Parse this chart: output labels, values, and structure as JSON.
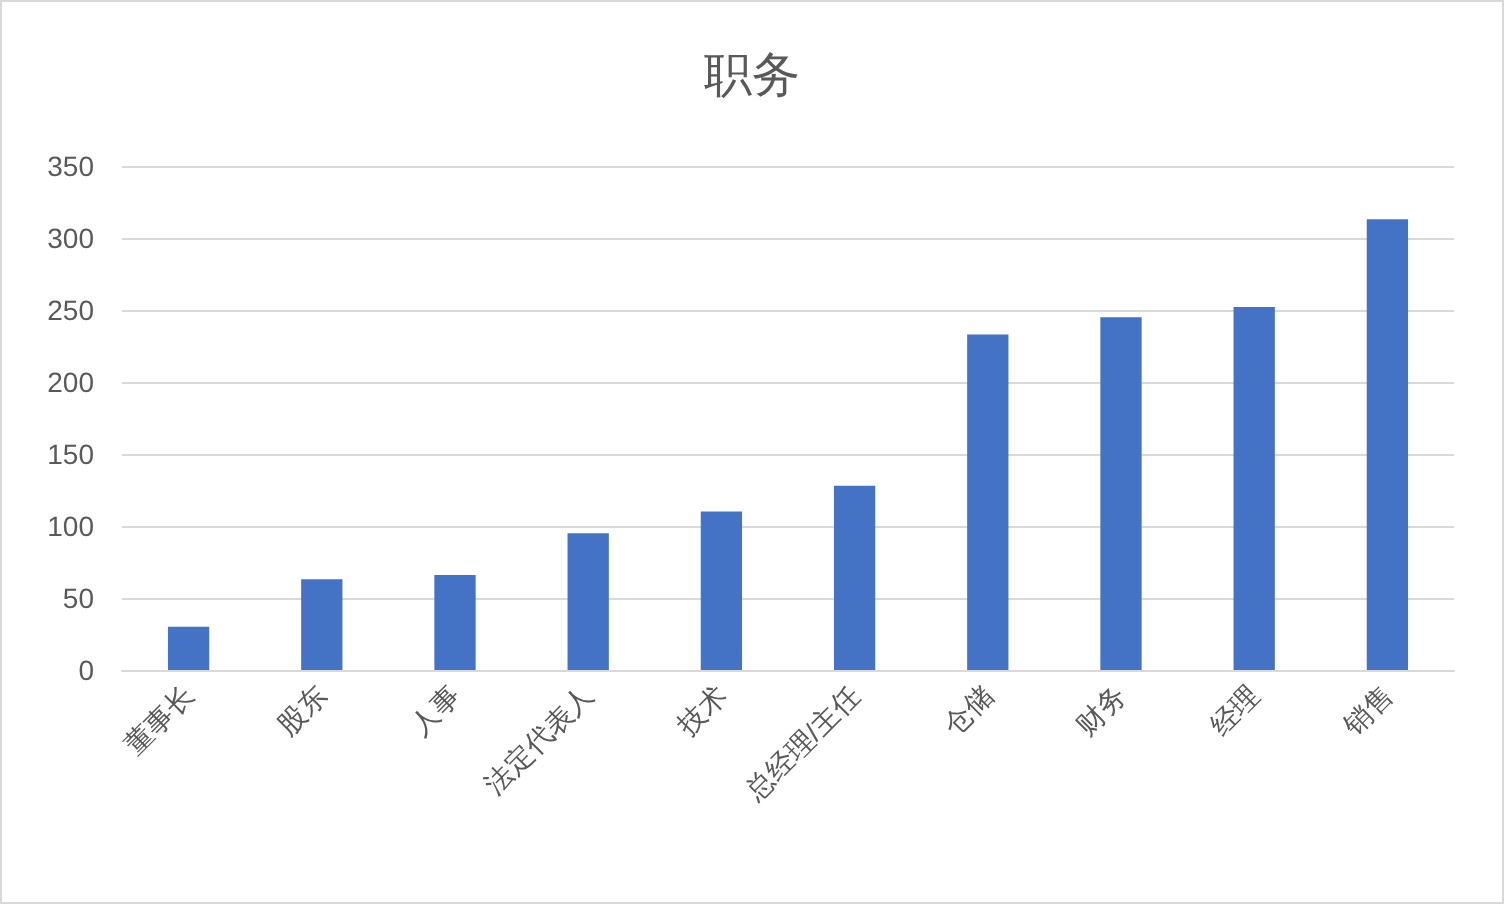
{
  "chart_data": {
    "type": "bar",
    "title": "职务",
    "categories": [
      "董事长",
      "股东",
      "人事",
      "法定代表人",
      "技术",
      "总经理/主任",
      "仓储",
      "财务",
      "经理",
      "销售"
    ],
    "values": [
      30,
      63,
      66,
      95,
      110,
      128,
      233,
      245,
      252,
      313
    ],
    "color": "#4472c4",
    "ylim": [
      0,
      350
    ],
    "yticks": [
      0,
      50,
      100,
      150,
      200,
      250,
      300,
      350
    ],
    "grid": "y"
  }
}
